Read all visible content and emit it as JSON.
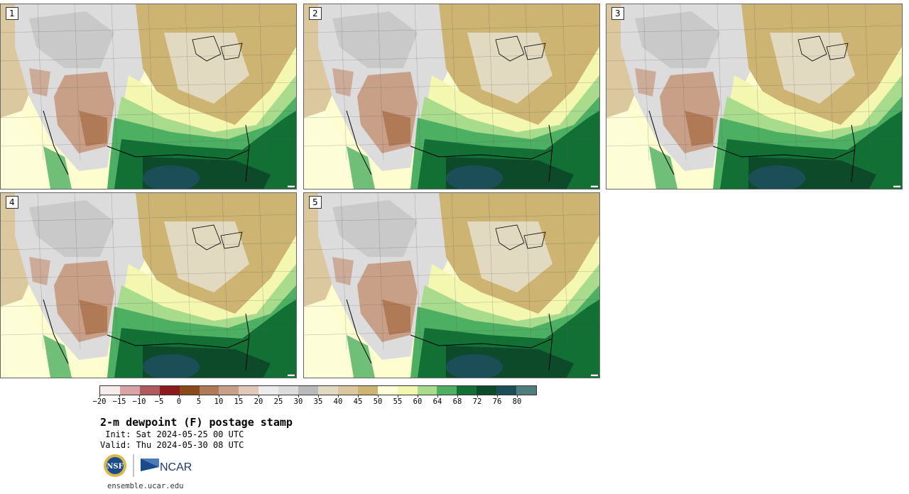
{
  "panels": [
    {
      "label": "1"
    },
    {
      "label": "2"
    },
    {
      "label": "3"
    },
    {
      "label": "4"
    },
    {
      "label": "5"
    }
  ],
  "colorbar": {
    "colors": [
      "#f6ecec",
      "#d9a4a8",
      "#b05a5e",
      "#8c1a1f",
      "#8a4a18",
      "#b07a56",
      "#c8a088",
      "#e2c8b8",
      "#ececec",
      "#dcdcdc",
      "#bababa",
      "#e2dac0",
      "#dbc89e",
      "#cdb472",
      "#fdfdd8",
      "#f4f7b0",
      "#a8dc8c",
      "#4caf62",
      "#137035",
      "#0d4a2a",
      "#1c4e57",
      "#4f7d7d"
    ],
    "ticks": [
      "−20",
      "−15",
      "−10",
      "−5",
      "0",
      "5",
      "10",
      "15",
      "20",
      "25",
      "30",
      "35",
      "40",
      "45",
      "50",
      "55",
      "60",
      "64",
      "68",
      "72",
      "76",
      "80"
    ]
  },
  "title": "2-m dewpoint (F) postage stamp",
  "init": " Init: Sat 2024-05-25 00 UTC",
  "valid": "Valid: Thu 2024-05-30 08 UTC",
  "logos": {
    "nsf": "NSF",
    "ncar": "NCAR"
  },
  "url": "ensemble.ucar.edu"
}
